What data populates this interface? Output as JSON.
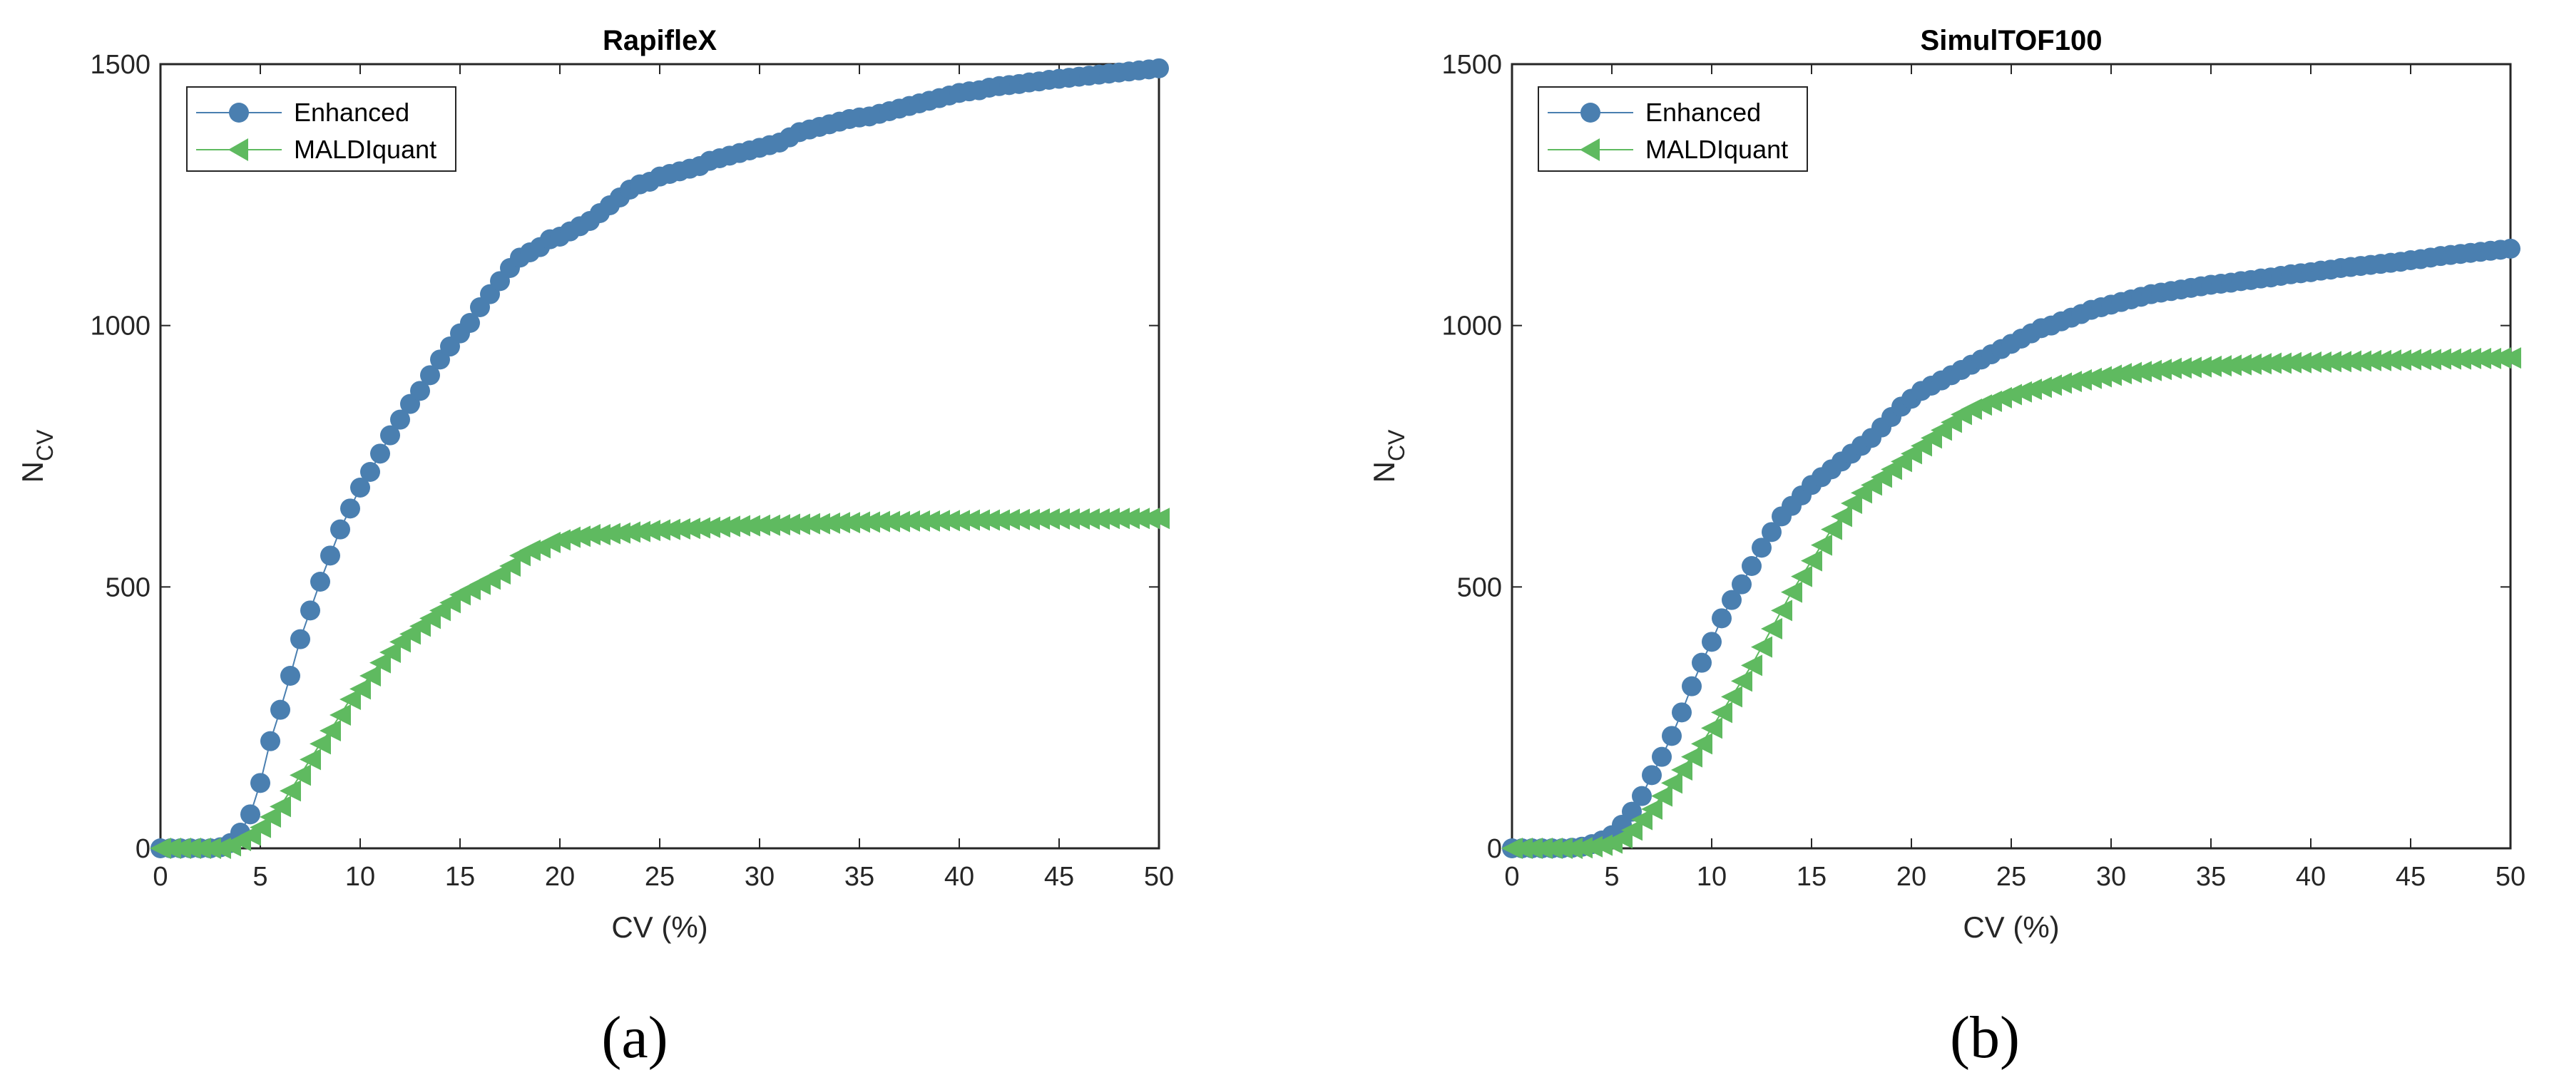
{
  "chart_data": [
    {
      "type": "line",
      "panel_label": "(a)",
      "title": "RapifleX",
      "xlabel": "CV (%)",
      "ylabel_main": "N",
      "ylabel_sub": "CV",
      "xlim": [
        0,
        50
      ],
      "ylim": [
        0,
        1500
      ],
      "xticks": [
        0,
        5,
        10,
        15,
        20,
        25,
        30,
        35,
        40,
        45,
        50
      ],
      "yticks": [
        0,
        500,
        1000,
        1500
      ],
      "grid": false,
      "legend_position": "top-left",
      "series": [
        {
          "name": "Enhanced",
          "color": "#4a7fb0",
          "marker": "circle",
          "x": [
            0,
            0.5,
            1,
            1.5,
            2,
            2.5,
            3,
            3.5,
            4,
            4.5,
            5,
            5.5,
            6,
            6.5,
            7,
            7.5,
            8,
            8.5,
            9,
            9.5,
            10,
            10.5,
            11,
            11.5,
            12,
            12.5,
            13,
            13.5,
            14,
            14.5,
            15,
            15.5,
            16,
            16.5,
            17,
            17.5,
            18,
            18.5,
            19,
            19.5,
            20,
            20.5,
            21,
            21.5,
            22,
            22.5,
            23,
            23.5,
            24,
            24.5,
            25,
            25.5,
            26,
            26.5,
            27,
            27.5,
            28,
            28.5,
            29,
            29.5,
            30,
            30.5,
            31,
            31.5,
            32,
            32.5,
            33,
            33.5,
            34,
            34.5,
            35,
            35.5,
            36,
            36.5,
            37,
            37.5,
            38,
            38.5,
            39,
            39.5,
            40,
            40.5,
            41,
            41.5,
            42,
            42.5,
            43,
            43.5,
            44,
            44.5,
            45,
            45.5,
            46,
            46.5,
            47,
            47.5,
            48,
            48.5,
            49,
            49.5,
            50
          ],
          "y": [
            0,
            0,
            0,
            0,
            0,
            0,
            2,
            10,
            30,
            65,
            125,
            205,
            265,
            330,
            400,
            455,
            510,
            560,
            610,
            650,
            690,
            720,
            755,
            790,
            820,
            850,
            875,
            905,
            935,
            960,
            985,
            1005,
            1035,
            1060,
            1085,
            1110,
            1130,
            1140,
            1150,
            1165,
            1170,
            1180,
            1190,
            1200,
            1215,
            1230,
            1245,
            1260,
            1270,
            1275,
            1285,
            1290,
            1295,
            1300,
            1305,
            1315,
            1320,
            1325,
            1330,
            1335,
            1340,
            1345,
            1350,
            1360,
            1370,
            1375,
            1380,
            1385,
            1390,
            1395,
            1398,
            1400,
            1405,
            1410,
            1415,
            1420,
            1425,
            1430,
            1435,
            1440,
            1445,
            1448,
            1450,
            1455,
            1458,
            1460,
            1462,
            1465,
            1467,
            1470,
            1472,
            1474,
            1476,
            1478,
            1480,
            1482,
            1484,
            1486,
            1488,
            1490,
            1492
          ]
        },
        {
          "name": "MALDIquant",
          "color": "#5fba60",
          "marker": "triangle-left",
          "x": [
            0,
            0.5,
            1,
            1.5,
            2,
            2.5,
            3,
            3.5,
            4,
            4.5,
            5,
            5.5,
            6,
            6.5,
            7,
            7.5,
            8,
            8.5,
            9,
            9.5,
            10,
            10.5,
            11,
            11.5,
            12,
            12.5,
            13,
            13.5,
            14,
            14.5,
            15,
            15.5,
            16,
            16.5,
            17,
            17.5,
            18,
            18.5,
            19,
            19.5,
            20,
            20.5,
            21,
            21.5,
            22,
            22.5,
            23,
            23.5,
            24,
            24.5,
            25,
            25.5,
            26,
            26.5,
            27,
            27.5,
            28,
            28.5,
            29,
            29.5,
            30,
            30.5,
            31,
            31.5,
            32,
            32.5,
            33,
            33.5,
            34,
            34.5,
            35,
            35.5,
            36,
            36.5,
            37,
            37.5,
            38,
            38.5,
            39,
            39.5,
            40,
            40.5,
            41,
            41.5,
            42,
            42.5,
            43,
            43.5,
            44,
            44.5,
            45,
            45.5,
            46,
            46.5,
            47,
            47.5,
            48,
            48.5,
            49,
            49.5,
            50
          ],
          "y": [
            0,
            0,
            0,
            0,
            0,
            0,
            0,
            5,
            15,
            25,
            40,
            60,
            80,
            110,
            140,
            170,
            200,
            225,
            255,
            285,
            305,
            330,
            355,
            375,
            395,
            410,
            425,
            440,
            455,
            470,
            485,
            495,
            505,
            515,
            525,
            540,
            560,
            570,
            575,
            585,
            590,
            595,
            597,
            600,
            600,
            602,
            603,
            605,
            606,
            608,
            609,
            610,
            611,
            612,
            613,
            614,
            615,
            616,
            617,
            617,
            618,
            618,
            619,
            620,
            620,
            621,
            621,
            622,
            623,
            623,
            624,
            624,
            625,
            625,
            625,
            626,
            626,
            626,
            627,
            627,
            627,
            628,
            628,
            628,
            628,
            629,
            629,
            629,
            630,
            630,
            630,
            630,
            630,
            630,
            630,
            631,
            631,
            631,
            631,
            631,
            631
          ]
        }
      ]
    },
    {
      "type": "line",
      "panel_label": "(b)",
      "title": "SimulTOF100",
      "xlabel": "CV (%)",
      "ylabel_main": "N",
      "ylabel_sub": "CV",
      "xlim": [
        0,
        50
      ],
      "ylim": [
        0,
        1500
      ],
      "xticks": [
        0,
        5,
        10,
        15,
        20,
        25,
        30,
        35,
        40,
        45,
        50
      ],
      "yticks": [
        0,
        500,
        1000,
        1500
      ],
      "grid": false,
      "legend_position": "top-left",
      "series": [
        {
          "name": "Enhanced",
          "color": "#4a7fb0",
          "marker": "circle",
          "x": [
            0,
            0.5,
            1,
            1.5,
            2,
            2.5,
            3,
            3.5,
            4,
            4.5,
            5,
            5.5,
            6,
            6.5,
            7,
            7.5,
            8,
            8.5,
            9,
            9.5,
            10,
            10.5,
            11,
            11.5,
            12,
            12.5,
            13,
            13.5,
            14,
            14.5,
            15,
            15.5,
            16,
            16.5,
            17,
            17.5,
            18,
            18.5,
            19,
            19.5,
            20,
            20.5,
            21,
            21.5,
            22,
            22.5,
            23,
            23.5,
            24,
            24.5,
            25,
            25.5,
            26,
            26.5,
            27,
            27.5,
            28,
            28.5,
            29,
            29.5,
            30,
            30.5,
            31,
            31.5,
            32,
            32.5,
            33,
            33.5,
            34,
            34.5,
            35,
            35.5,
            36,
            36.5,
            37,
            37.5,
            38,
            38.5,
            39,
            39.5,
            40,
            40.5,
            41,
            41.5,
            42,
            42.5,
            43,
            43.5,
            44,
            44.5,
            45,
            45.5,
            46,
            46.5,
            47,
            47.5,
            48,
            48.5,
            49,
            49.5,
            50
          ],
          "y": [
            0,
            0,
            0,
            0,
            0,
            0,
            1,
            3,
            8,
            15,
            25,
            45,
            70,
            100,
            140,
            175,
            215,
            260,
            310,
            355,
            395,
            440,
            475,
            505,
            540,
            575,
            605,
            635,
            655,
            675,
            695,
            710,
            725,
            740,
            755,
            770,
            785,
            805,
            825,
            845,
            860,
            875,
            885,
            895,
            905,
            915,
            925,
            935,
            945,
            955,
            965,
            975,
            985,
            995,
            1000,
            1008,
            1015,
            1022,
            1030,
            1035,
            1040,
            1045,
            1050,
            1055,
            1060,
            1063,
            1066,
            1069,
            1072,
            1075,
            1078,
            1080,
            1082,
            1085,
            1087,
            1090,
            1092,
            1095,
            1098,
            1100,
            1102,
            1105,
            1107,
            1110,
            1112,
            1114,
            1116,
            1118,
            1120,
            1122,
            1125,
            1127,
            1130,
            1133,
            1135,
            1137,
            1139,
            1141,
            1143,
            1145,
            1147
          ]
        },
        {
          "name": "MALDIquant",
          "color": "#5fba60",
          "marker": "triangle-left",
          "x": [
            0,
            0.5,
            1,
            1.5,
            2,
            2.5,
            3,
            3.5,
            4,
            4.5,
            5,
            5.5,
            6,
            6.5,
            7,
            7.5,
            8,
            8.5,
            9,
            9.5,
            10,
            10.5,
            11,
            11.5,
            12,
            12.5,
            13,
            13.5,
            14,
            14.5,
            15,
            15.5,
            16,
            16.5,
            17,
            17.5,
            18,
            18.5,
            19,
            19.5,
            20,
            20.5,
            21,
            21.5,
            22,
            22.5,
            23,
            23.5,
            24,
            24.5,
            25,
            25.5,
            26,
            26.5,
            27,
            27.5,
            28,
            28.5,
            29,
            29.5,
            30,
            30.5,
            31,
            31.5,
            32,
            32.5,
            33,
            33.5,
            34,
            34.5,
            35,
            35.5,
            36,
            36.5,
            37,
            37.5,
            38,
            38.5,
            39,
            39.5,
            40,
            40.5,
            41,
            41.5,
            42,
            42.5,
            43,
            43.5,
            44,
            44.5,
            45,
            45.5,
            46,
            46.5,
            47,
            47.5,
            48,
            48.5,
            49,
            49.5,
            50
          ],
          "y": [
            0,
            0,
            0,
            0,
            0,
            0,
            0,
            1,
            3,
            6,
            10,
            20,
            35,
            55,
            75,
            100,
            125,
            150,
            175,
            200,
            230,
            260,
            290,
            320,
            350,
            385,
            420,
            455,
            490,
            520,
            550,
            580,
            610,
            635,
            660,
            680,
            695,
            710,
            725,
            740,
            755,
            770,
            785,
            800,
            815,
            830,
            840,
            848,
            855,
            862,
            868,
            873,
            878,
            882,
            886,
            890,
            893,
            896,
            899,
            902,
            905,
            908,
            910,
            912,
            914,
            916,
            918,
            919,
            920,
            921,
            922,
            923,
            924,
            925,
            926,
            927,
            928,
            928,
            929,
            929,
            930,
            930,
            931,
            931,
            932,
            932,
            933,
            933,
            934,
            934,
            935,
            935,
            935,
            936,
            936,
            936,
            937,
            937,
            937,
            938,
            938
          ]
        }
      ]
    }
  ]
}
